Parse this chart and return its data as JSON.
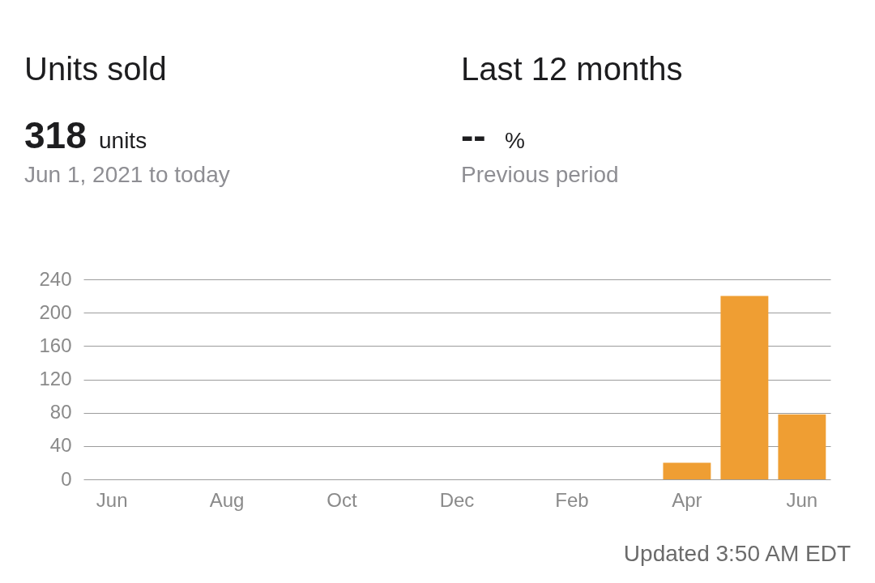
{
  "chart_data": {
    "type": "bar",
    "title": "Units sold",
    "annotations": [
      "Last 12 months",
      "318 units",
      "Jun 1, 2021 to today",
      "-- %",
      "Previous period",
      "Updated 3:50 AM EDT"
    ],
    "categories": [
      "Jun",
      null,
      "Aug",
      null,
      "Oct",
      null,
      "Dec",
      null,
      "Feb",
      null,
      "Apr",
      null,
      "Jun"
    ],
    "values": [
      0,
      0,
      0,
      0,
      0,
      0,
      0,
      0,
      0,
      0,
      20,
      220,
      78
    ],
    "color": "#ef9e33",
    "ylim": [
      0,
      240
    ],
    "yticks": [
      0,
      40,
      80,
      120,
      160,
      200,
      240
    ],
    "grid": "y"
  }
}
